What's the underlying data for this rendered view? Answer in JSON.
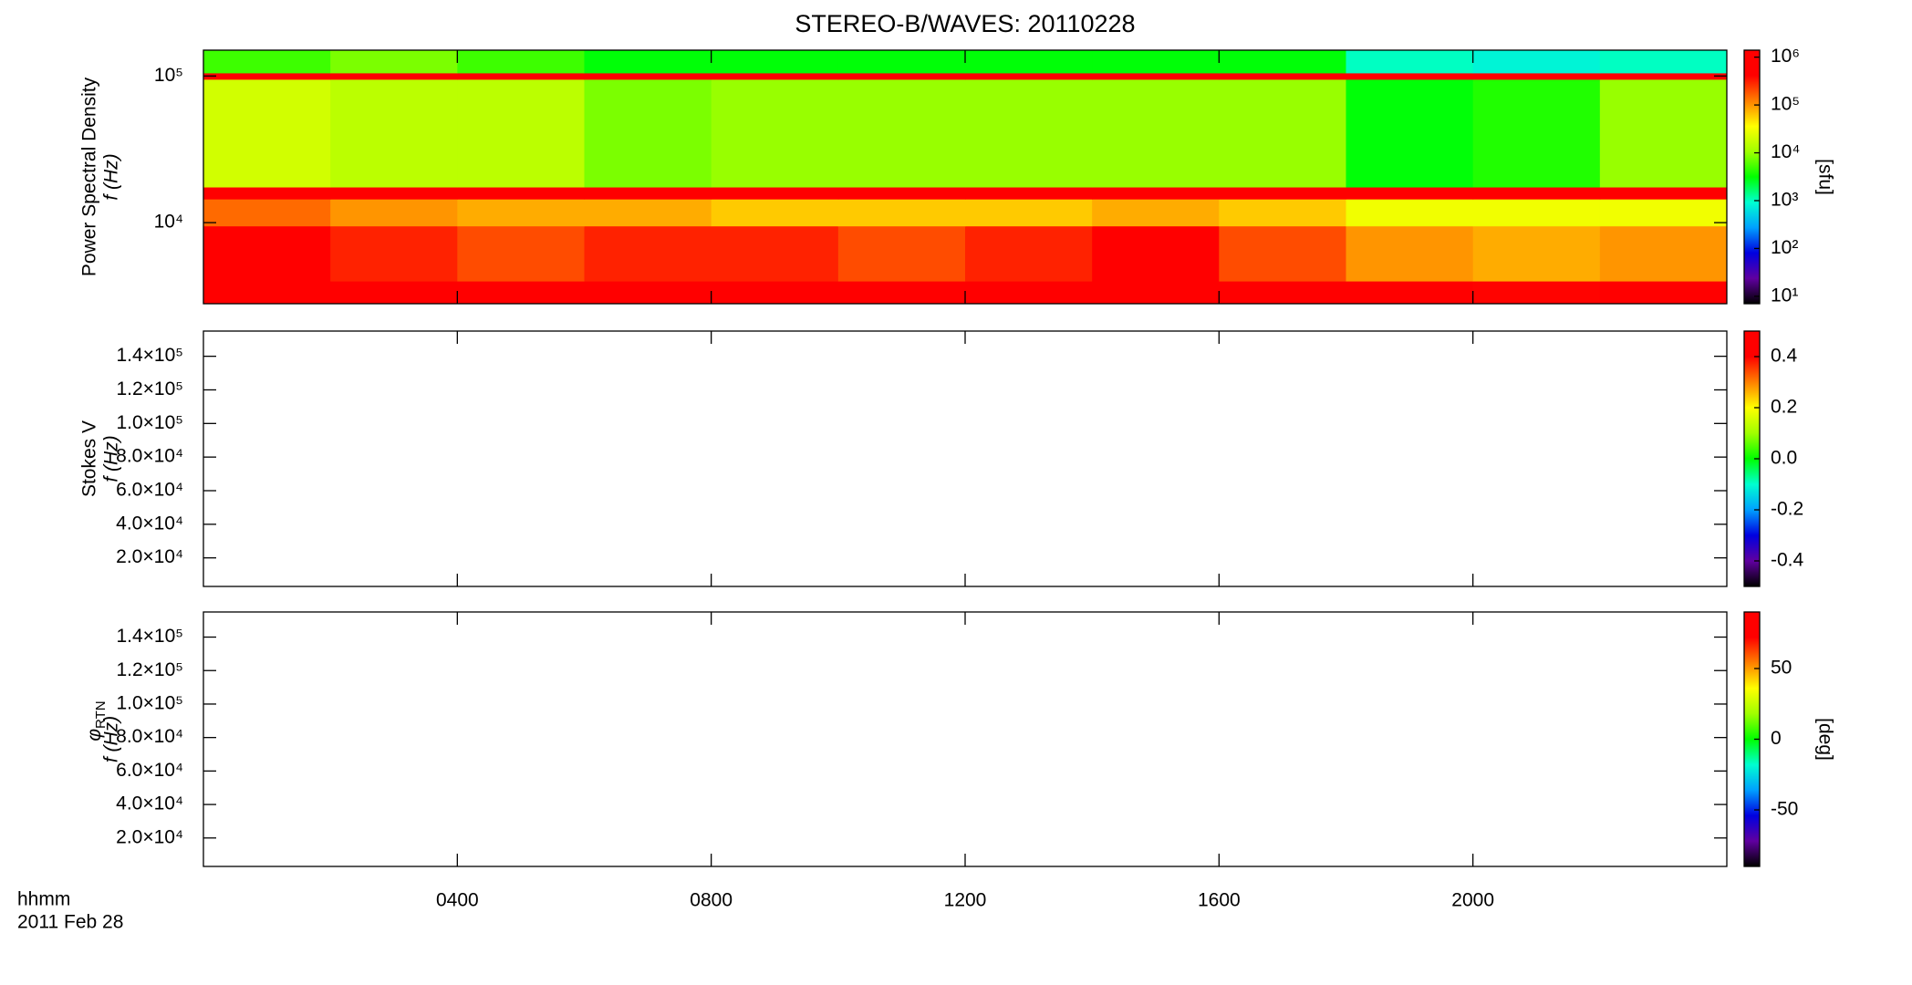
{
  "chart_data": [
    {
      "type": "heatmap",
      "title": "STEREO-B/WAVES: 20110228",
      "ylabel": [
        "Power Spectral Density",
        "f (Hz)"
      ],
      "xlim": [
        0,
        24
      ],
      "ylim": [
        2800,
        150000
      ],
      "log_y": true,
      "yticks": [
        {
          "value": 10000,
          "label": "10⁴"
        },
        {
          "value": 100000,
          "label": "10⁵"
        }
      ],
      "x_bins": [
        0,
        2,
        4,
        6,
        8,
        10,
        12,
        14,
        16,
        18,
        20,
        22,
        24
      ],
      "y_bins": [
        2800,
        4000,
        9500,
        14500,
        17500,
        95000,
        105000,
        150000
      ],
      "values": [
        [
          1000000,
          1000000,
          600000,
          800000,
          1000000,
          800000,
          1000000,
          1000000,
          600000,
          500000,
          400000,
          600000
        ],
        [
          500000,
          300000,
          200000,
          300000,
          300000,
          200000,
          300000,
          800000,
          200000,
          100000,
          80000,
          100000
        ],
        [
          150000,
          100000,
          80000,
          80000,
          60000,
          60000,
          60000,
          80000,
          60000,
          30000,
          30000,
          30000
        ],
        [
          1000000,
          1000000,
          1000000,
          1000000,
          1000000,
          1000000,
          1000000,
          1000000,
          1000000,
          1000000,
          1000000,
          1000000
        ],
        [
          20000,
          15000,
          15000,
          8000,
          10000,
          10000,
          10000,
          10000,
          10000,
          3000,
          4000,
          10000
        ],
        [
          500000,
          500000,
          500000,
          500000,
          500000,
          500000,
          800000,
          500000,
          500000,
          500000,
          800000,
          500000
        ],
        [
          5000,
          8000,
          5000,
          3000,
          3000,
          3000,
          3000,
          3000,
          3000,
          1000,
          800,
          1000
        ]
      ],
      "colorbar": {
        "label": "[sfu]",
        "lim": [
          7,
          1400000
        ],
        "log": true,
        "ticks": [
          {
            "value": 10,
            "label": "10¹"
          },
          {
            "value": 100,
            "label": "10²"
          },
          {
            "value": 1000,
            "label": "10³"
          },
          {
            "value": 10000,
            "label": "10⁴"
          },
          {
            "value": 100000,
            "label": "10⁵"
          },
          {
            "value": 1000000,
            "label": "10⁶"
          }
        ],
        "colors": [
          "#000000",
          "#6000a0",
          "#0000e0",
          "#00a0ff",
          "#00ffd0",
          "#00ff00",
          "#a0ff00",
          "#ffff00",
          "#ff8000",
          "#ff0000",
          "#ff0000"
        ]
      }
    },
    {
      "type": "heatmap",
      "ylabel": [
        "Stokes V",
        "f (Hz)"
      ],
      "xlim": [
        0,
        24
      ],
      "ylim": [
        3000,
        155000
      ],
      "log_y": false,
      "yticks": [
        {
          "value": 20000,
          "label": "2.0×10⁴"
        },
        {
          "value": 40000,
          "label": "4.0×10⁴"
        },
        {
          "value": 60000,
          "label": "6.0×10⁴"
        },
        {
          "value": 80000,
          "label": "8.0×10⁴"
        },
        {
          "value": 100000,
          "label": "1.0×10⁵"
        },
        {
          "value": 120000,
          "label": "1.2×10⁵"
        },
        {
          "value": 140000,
          "label": "1.4×10⁵"
        }
      ],
      "colorbar": {
        "lim": [
          -0.5,
          0.5
        ],
        "log": false,
        "ticks": [
          {
            "value": -0.4,
            "label": "-0.4"
          },
          {
            "value": -0.2,
            "label": "-0.2"
          },
          {
            "value": 0,
            "label": "0.0"
          },
          {
            "value": 0.2,
            "label": "0.2"
          },
          {
            "value": 0.4,
            "label": "0.4"
          }
        ],
        "colors": [
          "#000000",
          "#6000a0",
          "#0000e0",
          "#00a0ff",
          "#00ffd0",
          "#00ff00",
          "#a0ff00",
          "#ffff00",
          "#ff8000",
          "#ff0000",
          "#ff0000"
        ]
      }
    },
    {
      "type": "heatmap",
      "ylabel_symbol": "φ",
      "ylabel_subscript": "RTN",
      "ylabel": [
        "f (Hz)"
      ],
      "xlim": [
        0,
        24
      ],
      "ylim": [
        3000,
        155000
      ],
      "log_y": false,
      "yticks": [
        {
          "value": 20000,
          "label": "2.0×10⁴"
        },
        {
          "value": 40000,
          "label": "4.0×10⁴"
        },
        {
          "value": 60000,
          "label": "6.0×10⁴"
        },
        {
          "value": 80000,
          "label": "8.0×10⁴"
        },
        {
          "value": 100000,
          "label": "1.0×10⁵"
        },
        {
          "value": 120000,
          "label": "1.2×10⁵"
        },
        {
          "value": 140000,
          "label": "1.4×10⁵"
        }
      ],
      "xticks": [
        {
          "value": 4,
          "label": "0400"
        },
        {
          "value": 8,
          "label": "0800"
        },
        {
          "value": 12,
          "label": "1200"
        },
        {
          "value": 16,
          "label": "1600"
        },
        {
          "value": 20,
          "label": "2000"
        }
      ],
      "xlabel": [
        "hhmm",
        "2011 Feb 28"
      ],
      "colorbar": {
        "label": "[deg]",
        "lim": [
          -90,
          90
        ],
        "log": false,
        "ticks": [
          -50,
          0,
          50
        ],
        "colors": [
          "#000000",
          "#6000a0",
          "#0000e0",
          "#00a0ff",
          "#00ffd0",
          "#00ff00",
          "#a0ff00",
          "#ffff00",
          "#ff8000",
          "#ff0000",
          "#ff0000"
        ]
      }
    }
  ]
}
